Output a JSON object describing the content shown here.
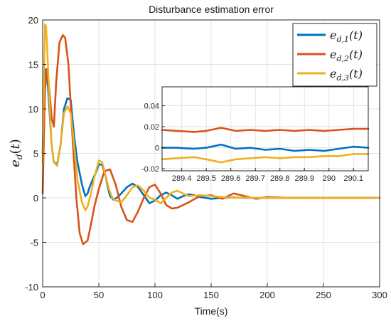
{
  "chart_data": {
    "type": "line",
    "title": "Disturbance estimation error",
    "xlabel": "Time(s)",
    "ylabel": "e_d(t)",
    "ylabel_display": "ed(t)",
    "xlim": [
      0,
      300
    ],
    "ylim": [
      -10,
      20
    ],
    "xticks": [
      0,
      50,
      100,
      150,
      200,
      250,
      300
    ],
    "yticks": [
      -10,
      -5,
      0,
      5,
      10,
      15,
      20
    ],
    "grid": true,
    "legend_position": "top-right",
    "series": [
      {
        "name": "e_{d,1}(t)",
        "legend_main": "e",
        "legend_sub": "d,1",
        "legend_tail": "(t)",
        "color": "#0072BD",
        "x": [
          0,
          2,
          4,
          6,
          8,
          10,
          13,
          16,
          19,
          22,
          25,
          28,
          31,
          35,
          38,
          40,
          42,
          45,
          48,
          50,
          53,
          56,
          58,
          60,
          63,
          66,
          70,
          75,
          80,
          85,
          90,
          95,
          100,
          105,
          110,
          115,
          120,
          125,
          130,
          135,
          140,
          145,
          150,
          160,
          170,
          180,
          190,
          200,
          220,
          250,
          280,
          300
        ],
        "y": [
          5,
          14.5,
          14,
          10,
          6,
          4,
          3.8,
          6,
          10,
          11.2,
          11,
          7,
          4,
          1.5,
          0.2,
          0.5,
          1.3,
          2.2,
          3,
          3.8,
          3.7,
          2.5,
          1.2,
          0.2,
          -0.2,
          0,
          0.5,
          1.2,
          1.6,
          1.2,
          0.3,
          -0.6,
          -0.3,
          0.3,
          0.6,
          0.3,
          -0.1,
          0.2,
          0.4,
          0.3,
          0.1,
          0,
          -0.1,
          0,
          0.05,
          0,
          0,
          0,
          0,
          0,
          0,
          0
        ]
      },
      {
        "name": "e_{d,2}(t)",
        "legend_main": "e",
        "legend_sub": "d,2",
        "legend_tail": "(t)",
        "color": "#D95319",
        "x": [
          0,
          2,
          4,
          6,
          8,
          10,
          12,
          15,
          18,
          20,
          23,
          26,
          30,
          33,
          36,
          40,
          43,
          46,
          50,
          55,
          60,
          65,
          70,
          75,
          80,
          85,
          90,
          95,
          100,
          105,
          110,
          115,
          120,
          130,
          140,
          150,
          160,
          170,
          180,
          190,
          200,
          220,
          250,
          280,
          300
        ],
        "y": [
          0.5,
          12,
          14.5,
          12,
          9,
          8,
          13,
          17.5,
          18.3,
          18,
          15,
          8,
          0,
          -4,
          -5.2,
          -4.8,
          -3,
          -1,
          1,
          3,
          3.2,
          1.5,
          -1,
          -2.5,
          -2.7,
          -1.5,
          0,
          1.2,
          1.5,
          0.5,
          -0.8,
          -1.2,
          -1.1,
          -0.5,
          0.2,
          0.3,
          -0.1,
          0.5,
          0.2,
          -0.1,
          0.1,
          0,
          0,
          0,
          0
        ]
      },
      {
        "name": "e_{d,3}(t)",
        "legend_main": "e",
        "legend_sub": "d,3",
        "legend_tail": "(t)",
        "color": "#EDB120",
        "x": [
          0,
          2,
          3,
          4,
          6,
          8,
          10,
          13,
          16,
          19,
          22,
          25,
          28,
          31,
          35,
          38,
          40,
          43,
          46,
          50,
          53,
          56,
          59,
          62,
          65,
          70,
          75,
          80,
          85,
          90,
          95,
          100,
          105,
          110,
          115,
          120,
          125,
          130,
          140,
          150,
          160,
          170,
          180,
          190,
          200,
          220,
          250,
          280,
          300
        ],
        "y": [
          4,
          19.5,
          19.3,
          17,
          11,
          6,
          4,
          3.6,
          6,
          9.5,
          10.3,
          9.5,
          6,
          2,
          -0.5,
          -1.4,
          -1,
          0.5,
          2.3,
          4.2,
          4,
          2.5,
          1,
          0,
          -0.3,
          -0.5,
          0.3,
          1.2,
          1.4,
          0.8,
          0,
          -0.2,
          -0.6,
          0,
          0.6,
          0.8,
          0.5,
          0.2,
          0.3,
          0.2,
          0.1,
          0,
          0.05,
          0,
          0,
          0,
          0,
          0,
          0
        ]
      }
    ],
    "inset": {
      "xlim": [
        289.32,
        290.16
      ],
      "ylim": [
        -0.022,
        0.058
      ],
      "xticks": [
        289.4,
        289.5,
        289.6,
        289.7,
        289.8,
        289.9,
        290,
        290.1
      ],
      "yticks": [
        -0.02,
        0,
        0.02,
        0.04
      ],
      "ytick_labels": [
        "-0.02",
        "0",
        "0.02",
        "0.04"
      ],
      "grid": true,
      "series": [
        {
          "color": "#0072BD",
          "x": [
            289.32,
            289.38,
            289.45,
            289.5,
            289.56,
            289.62,
            289.68,
            289.74,
            289.8,
            289.86,
            289.92,
            289.98,
            290.04,
            290.1,
            290.16
          ],
          "y": [
            0.0,
            0.0,
            -0.001,
            0.0,
            0.003,
            -0.001,
            0.0,
            -0.002,
            -0.001,
            -0.003,
            -0.002,
            -0.003,
            -0.001,
            0.001,
            0.0
          ]
        },
        {
          "color": "#D95319",
          "x": [
            289.32,
            289.38,
            289.45,
            289.5,
            289.56,
            289.62,
            289.68,
            289.74,
            289.8,
            289.86,
            289.92,
            289.98,
            290.04,
            290.1,
            290.16
          ],
          "y": [
            0.017,
            0.016,
            0.015,
            0.016,
            0.019,
            0.016,
            0.017,
            0.016,
            0.017,
            0.016,
            0.017,
            0.016,
            0.017,
            0.018,
            0.018
          ]
        },
        {
          "color": "#EDB120",
          "x": [
            289.32,
            289.38,
            289.45,
            289.5,
            289.56,
            289.62,
            289.68,
            289.74,
            289.8,
            289.86,
            289.92,
            289.98,
            290.04,
            290.1,
            290.16
          ],
          "y": [
            -0.011,
            -0.01,
            -0.009,
            -0.011,
            -0.014,
            -0.011,
            -0.01,
            -0.009,
            -0.01,
            -0.009,
            -0.009,
            -0.008,
            -0.008,
            -0.006,
            -0.006
          ]
        }
      ]
    }
  }
}
